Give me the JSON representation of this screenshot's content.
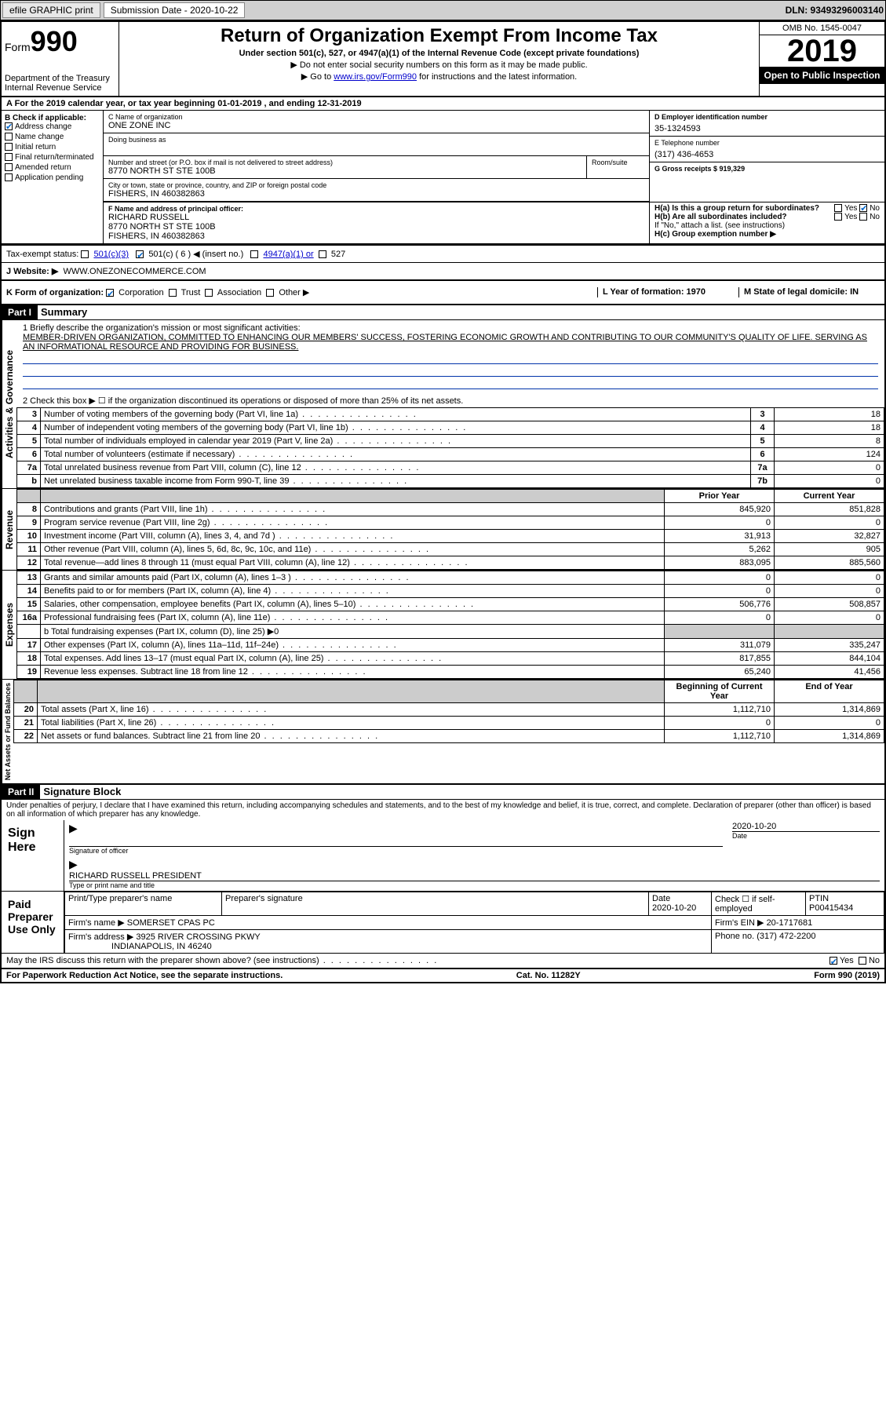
{
  "topbar": {
    "efile_label": "efile GRAPHIC print",
    "sub_date_label": "Submission Date - 2020-10-22",
    "dln": "DLN: 93493296003140"
  },
  "header": {
    "form_word": "Form",
    "form_num": "990",
    "dept": "Department of the Treasury\nInternal Revenue Service",
    "title": "Return of Organization Exempt From Income Tax",
    "subtitle": "Under section 501(c), 527, or 4947(a)(1) of the Internal Revenue Code (except private foundations)",
    "note1": "▶ Do not enter social security numbers on this form as it may be made public.",
    "note2_pre": "▶ Go to ",
    "note2_link": "www.irs.gov/Form990",
    "note2_post": " for instructions and the latest information.",
    "omb": "OMB No. 1545-0047",
    "year": "2019",
    "inspection": "Open to Public Inspection"
  },
  "section_a": "A For the 2019 calendar year, or tax year beginning 01-01-2019   , and ending 12-31-2019",
  "col_b": {
    "header": "B Check if applicable:",
    "addr_change": "Address change",
    "name_change": "Name change",
    "initial": "Initial return",
    "final": "Final return/terminated",
    "amended": "Amended return",
    "app_pending": "Application pending"
  },
  "org": {
    "name_label": "C Name of organization",
    "name": "ONE ZONE INC",
    "dba_label": "Doing business as",
    "addr_label": "Number and street (or P.O. box if mail is not delivered to street address)",
    "room_label": "Room/suite",
    "addr": "8770 NORTH ST STE 100B",
    "city_label": "City or town, state or province, country, and ZIP or foreign postal code",
    "city": "FISHERS, IN  460382863",
    "officer_label": "F Name and address of principal officer:",
    "officer_name": "RICHARD RUSSELL",
    "officer_addr1": "8770 NORTH ST STE 100B",
    "officer_addr2": "FISHERS, IN  460382863"
  },
  "right": {
    "ein_label": "D Employer identification number",
    "ein": "35-1324593",
    "phone_label": "E Telephone number",
    "phone": "(317) 436-4653",
    "gross_label": "G Gross receipts $ 919,329",
    "h_a": "H(a)  Is this a group return for subordinates?",
    "h_b": "H(b)  Are all subordinates included?",
    "h_b_note": "If \"No,\" attach a list. (see instructions)",
    "h_c": "H(c)  Group exemption number ▶",
    "yes": "Yes",
    "no": "No"
  },
  "tax_status": {
    "label": "Tax-exempt status:",
    "c3": "501(c)(3)",
    "c": "501(c) ( 6 ) ◀ (insert no.)",
    "a4947": "4947(a)(1) or",
    "s527": "527"
  },
  "website": {
    "label": "J   Website: ▶",
    "value": "WWW.ONEZONECOMMERCE.COM"
  },
  "k_row": {
    "label": "K Form of organization:",
    "corp": "Corporation",
    "trust": "Trust",
    "assoc": "Association",
    "other": "Other ▶",
    "l_label": "L Year of formation: 1970",
    "m_label": "M State of legal domicile: IN"
  },
  "part1": {
    "num": "Part I",
    "title": "Summary"
  },
  "mission": {
    "line1_label": "1  Briefly describe the organization's mission or most significant activities:",
    "text": "MEMBER-DRIVEN ORGANIZATION, COMMITTED TO ENHANCING OUR MEMBERS' SUCCESS, FOSTERING ECONOMIC GROWTH AND CONTRIBUTING TO OUR COMMUNITY'S QUALITY OF LIFE. SERVING AS AN INFORMATIONAL RESOURCE AND PROVIDING FOR BUSINESS."
  },
  "activities": {
    "side": "Activities & Governance",
    "line2": "2   Check this box ▶ ☐  if the organization discontinued its operations or disposed of more than 25% of its net assets.",
    "rows": [
      {
        "n": "3",
        "d": "Number of voting members of the governing body (Part VI, line 1a)",
        "b": "3",
        "v": "18"
      },
      {
        "n": "4",
        "d": "Number of independent voting members of the governing body (Part VI, line 1b)",
        "b": "4",
        "v": "18"
      },
      {
        "n": "5",
        "d": "Total number of individuals employed in calendar year 2019 (Part V, line 2a)",
        "b": "5",
        "v": "8"
      },
      {
        "n": "6",
        "d": "Total number of volunteers (estimate if necessary)",
        "b": "6",
        "v": "124"
      },
      {
        "n": "7a",
        "d": "Total unrelated business revenue from Part VIII, column (C), line 12",
        "b": "7a",
        "v": "0"
      },
      {
        "n": "b",
        "d": "Net unrelated business taxable income from Form 990-T, line 39",
        "b": "7b",
        "v": "0"
      }
    ]
  },
  "revenue": {
    "side": "Revenue",
    "prior_hdr": "Prior Year",
    "curr_hdr": "Current Year",
    "rows": [
      {
        "n": "8",
        "d": "Contributions and grants (Part VIII, line 1h)",
        "p": "845,920",
        "c": "851,828"
      },
      {
        "n": "9",
        "d": "Program service revenue (Part VIII, line 2g)",
        "p": "0",
        "c": "0"
      },
      {
        "n": "10",
        "d": "Investment income (Part VIII, column (A), lines 3, 4, and 7d )",
        "p": "31,913",
        "c": "32,827"
      },
      {
        "n": "11",
        "d": "Other revenue (Part VIII, column (A), lines 5, 6d, 8c, 9c, 10c, and 11e)",
        "p": "5,262",
        "c": "905"
      },
      {
        "n": "12",
        "d": "Total revenue—add lines 8 through 11 (must equal Part VIII, column (A), line 12)",
        "p": "883,095",
        "c": "885,560"
      }
    ]
  },
  "expenses": {
    "side": "Expenses",
    "rows": [
      {
        "n": "13",
        "d": "Grants and similar amounts paid (Part IX, column (A), lines 1–3 )",
        "p": "0",
        "c": "0"
      },
      {
        "n": "14",
        "d": "Benefits paid to or for members (Part IX, column (A), line 4)",
        "p": "0",
        "c": "0"
      },
      {
        "n": "15",
        "d": "Salaries, other compensation, employee benefits (Part IX, column (A), lines 5–10)",
        "p": "506,776",
        "c": "508,857"
      },
      {
        "n": "16a",
        "d": "Professional fundraising fees (Part IX, column (A), line 11e)",
        "p": "0",
        "c": "0"
      }
    ],
    "line_b": "b  Total fundraising expenses (Part IX, column (D), line 25) ▶0",
    "rows2": [
      {
        "n": "17",
        "d": "Other expenses (Part IX, column (A), lines 11a–11d, 11f–24e)",
        "p": "311,079",
        "c": "335,247"
      },
      {
        "n": "18",
        "d": "Total expenses. Add lines 13–17 (must equal Part IX, column (A), line 25)",
        "p": "817,855",
        "c": "844,104"
      },
      {
        "n": "19",
        "d": "Revenue less expenses. Subtract line 18 from line 12",
        "p": "65,240",
        "c": "41,456"
      }
    ]
  },
  "netassets": {
    "side": "Net Assets or Fund Balances",
    "begin_hdr": "Beginning of Current Year",
    "end_hdr": "End of Year",
    "rows": [
      {
        "n": "20",
        "d": "Total assets (Part X, line 16)",
        "p": "1,112,710",
        "c": "1,314,869"
      },
      {
        "n": "21",
        "d": "Total liabilities (Part X, line 26)",
        "p": "0",
        "c": "0"
      },
      {
        "n": "22",
        "d": "Net assets or fund balances. Subtract line 21 from line 20",
        "p": "1,112,710",
        "c": "1,314,869"
      }
    ]
  },
  "part2": {
    "num": "Part II",
    "title": "Signature Block"
  },
  "sig": {
    "jurat": "Under penalties of perjury, I declare that I have examined this return, including accompanying schedules and statements, and to the best of my knowledge and belief, it is true, correct, and complete. Declaration of preparer (other than officer) is based on all information of which preparer has any knowledge.",
    "sign_here": "Sign Here",
    "sig_officer": "Signature of officer",
    "date": "2020-10-20",
    "date_label": "Date",
    "officer_print": "RICHARD RUSSELL  PRESIDENT",
    "type_label": "Type or print name and title",
    "paid": "Paid Preparer Use Only",
    "prep_name_label": "Print/Type preparer's name",
    "prep_sig_label": "Preparer's signature",
    "prep_date_label": "Date",
    "prep_date": "2020-10-20",
    "check_self": "Check ☐ if self-employed",
    "ptin_label": "PTIN",
    "ptin": "P00415434",
    "firm_name_label": "Firm's name    ▶",
    "firm_name": "SOMERSET CPAS PC",
    "firm_ein_label": "Firm's EIN ▶",
    "firm_ein": "20-1717681",
    "firm_addr_label": "Firm's address ▶",
    "firm_addr1": "3925 RIVER CROSSING PKWY",
    "firm_addr2": "INDIANAPOLIS, IN  46240",
    "firm_phone_label": "Phone no.",
    "firm_phone": "(317) 472-2200",
    "discuss": "May the IRS discuss this return with the preparer shown above? (see instructions)"
  },
  "footer": {
    "paperwork": "For Paperwork Reduction Act Notice, see the separate instructions.",
    "cat": "Cat. No. 11282Y",
    "form": "Form 990 (2019)"
  }
}
